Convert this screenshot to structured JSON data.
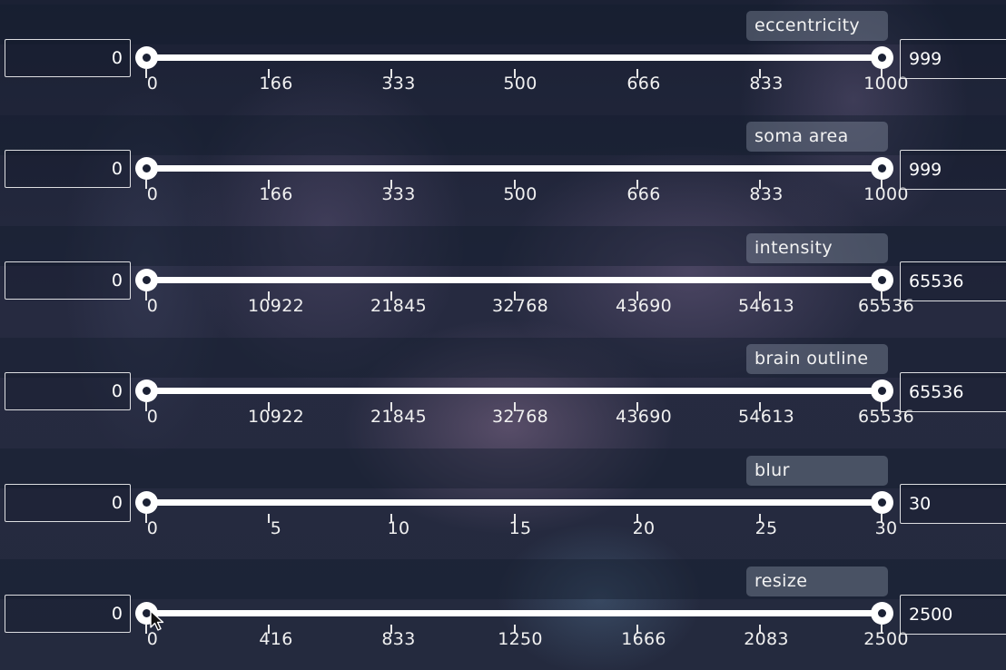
{
  "sliders": [
    {
      "label": "eccentricity",
      "min_value": "0",
      "max_value": "999",
      "ticks": [
        "0",
        "166",
        "333",
        "500",
        "666",
        "833",
        "1000"
      ]
    },
    {
      "label": "soma area",
      "min_value": "0",
      "max_value": "999",
      "ticks": [
        "0",
        "166",
        "333",
        "500",
        "666",
        "833",
        "1000"
      ]
    },
    {
      "label": "intensity",
      "min_value": "0",
      "max_value": "65536",
      "ticks": [
        "0",
        "10922",
        "21845",
        "32768",
        "43690",
        "54613",
        "65536"
      ]
    },
    {
      "label": "brain outline",
      "min_value": "0",
      "max_value": "65536",
      "ticks": [
        "0",
        "10922",
        "21845",
        "32768",
        "43690",
        "54613",
        "65536"
      ]
    },
    {
      "label": "blur",
      "min_value": "0",
      "max_value": "30",
      "ticks": [
        "0",
        "5",
        "10",
        "15",
        "20",
        "25",
        "30"
      ]
    },
    {
      "label": "resize",
      "min_value": "0",
      "max_value": "2500",
      "ticks": [
        "0",
        "416",
        "833",
        "1250",
        "1666",
        "2083",
        "2500"
      ]
    }
  ],
  "icons": {
    "slider_handle": "circle-handle-icon",
    "pointer": "mouse-pointer-icon"
  },
  "colors": {
    "background": "#1d2236",
    "track": "#ffffff",
    "label_pill": "#8a93a8"
  }
}
